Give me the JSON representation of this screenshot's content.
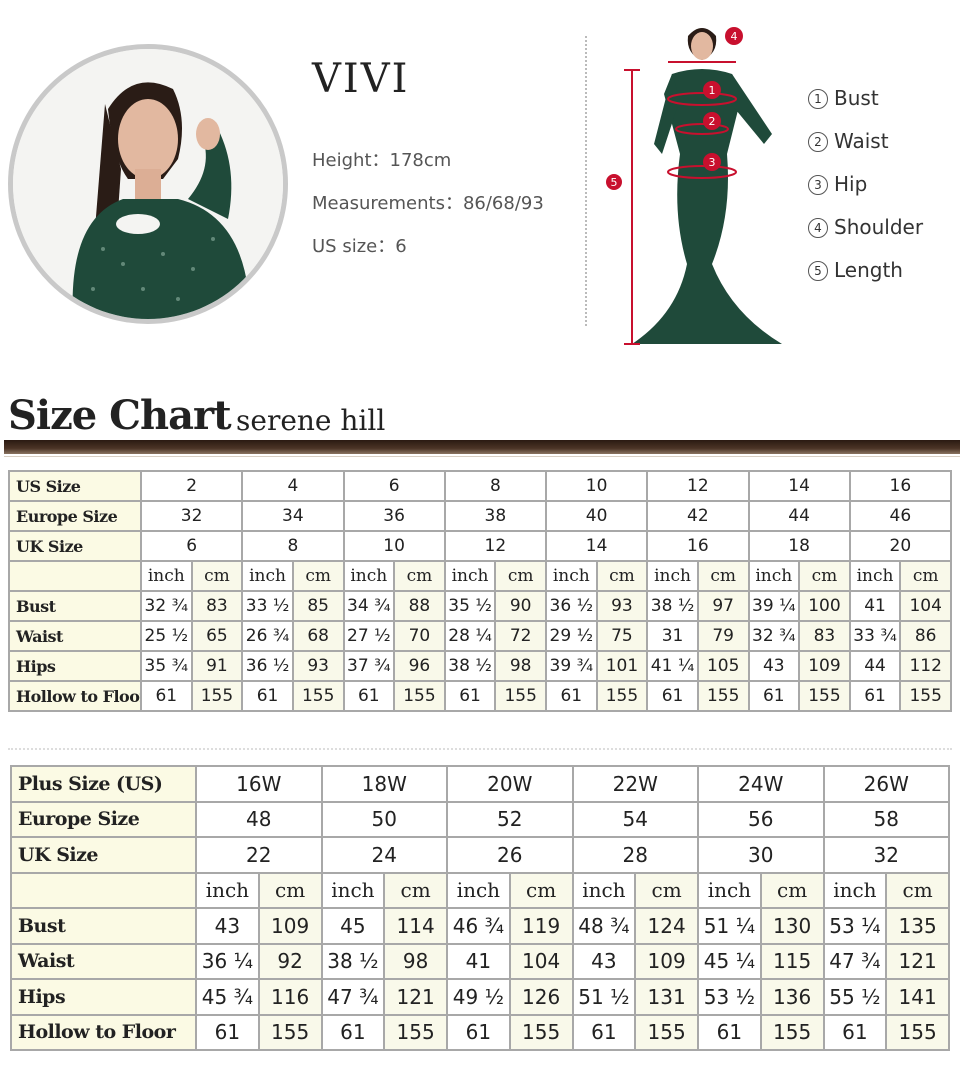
{
  "model": {
    "name": "VIVI",
    "height": "Height：178cm",
    "measurements": "Measurements：86/68/93",
    "us_size": "US size：6"
  },
  "diagram": {
    "legend": [
      {
        "num": "1",
        "label": "Bust"
      },
      {
        "num": "2",
        "label": "Waist"
      },
      {
        "num": "3",
        "label": "Hip"
      },
      {
        "num": "4",
        "label": "Shoulder"
      },
      {
        "num": "5",
        "label": "Length"
      }
    ],
    "marker_color": "#c8102e",
    "dress_color": "#1f4a3a"
  },
  "chart": {
    "title": "Size Chart",
    "brand": "serene hill"
  },
  "standard_table": {
    "header_rows": [
      {
        "label": "US Size",
        "values": [
          "2",
          "4",
          "6",
          "8",
          "10",
          "12",
          "14",
          "16"
        ]
      },
      {
        "label": "Europe Size",
        "values": [
          "32",
          "34",
          "36",
          "38",
          "40",
          "42",
          "44",
          "46"
        ]
      },
      {
        "label": "UK Size",
        "values": [
          "6",
          "8",
          "10",
          "12",
          "14",
          "16",
          "18",
          "20"
        ]
      }
    ],
    "units": [
      "inch",
      "cm"
    ],
    "rows": [
      {
        "label": "Bust",
        "values": [
          "32 ¾",
          "83",
          "33 ½",
          "85",
          "34 ¾",
          "88",
          "35 ½",
          "90",
          "36 ½",
          "93",
          "38 ½",
          "97",
          "39 ¼",
          "100",
          "41",
          "104"
        ]
      },
      {
        "label": "Waist",
        "values": [
          "25 ½",
          "65",
          "26 ¾",
          "68",
          "27 ½",
          "70",
          "28 ¼",
          "72",
          "29 ½",
          "75",
          "31",
          "79",
          "32 ¾",
          "83",
          "33 ¾",
          "86"
        ]
      },
      {
        "label": "Hips",
        "values": [
          "35 ¾",
          "91",
          "36 ½",
          "93",
          "37 ¾",
          "96",
          "38 ½",
          "98",
          "39 ¾",
          "101",
          "41 ¼",
          "105",
          "43",
          "109",
          "44",
          "112"
        ]
      },
      {
        "label": "Hollow to Floor",
        "values": [
          "61",
          "155",
          "61",
          "155",
          "61",
          "155",
          "61",
          "155",
          "61",
          "155",
          "61",
          "155",
          "61",
          "155",
          "61",
          "155"
        ]
      }
    ]
  },
  "plus_table": {
    "header_rows": [
      {
        "label": "Plus Size (US)",
        "values": [
          "16W",
          "18W",
          "20W",
          "22W",
          "24W",
          "26W"
        ]
      },
      {
        "label": "Europe Size",
        "values": [
          "48",
          "50",
          "52",
          "54",
          "56",
          "58"
        ]
      },
      {
        "label": "UK Size",
        "values": [
          "22",
          "24",
          "26",
          "28",
          "30",
          "32"
        ]
      }
    ],
    "units": [
      "inch",
      "cm"
    ],
    "rows": [
      {
        "label": "Bust",
        "values": [
          "43",
          "109",
          "45",
          "114",
          "46 ¾",
          "119",
          "48 ¾",
          "124",
          "51 ¼",
          "130",
          "53 ¼",
          "135"
        ]
      },
      {
        "label": "Waist",
        "values": [
          "36 ¼",
          "92",
          "38 ½",
          "98",
          "41",
          "104",
          "43",
          "109",
          "45 ¼",
          "115",
          "47 ¾",
          "121"
        ]
      },
      {
        "label": "Hips",
        "values": [
          "45 ¾",
          "116",
          "47 ¾",
          "121",
          "49 ½",
          "126",
          "51 ½",
          "131",
          "53 ½",
          "136",
          "55 ½",
          "141"
        ]
      },
      {
        "label": "Hollow to Floor",
        "values": [
          "61",
          "155",
          "61",
          "155",
          "61",
          "155",
          "61",
          "155",
          "61",
          "155",
          "61",
          "155"
        ]
      }
    ]
  }
}
